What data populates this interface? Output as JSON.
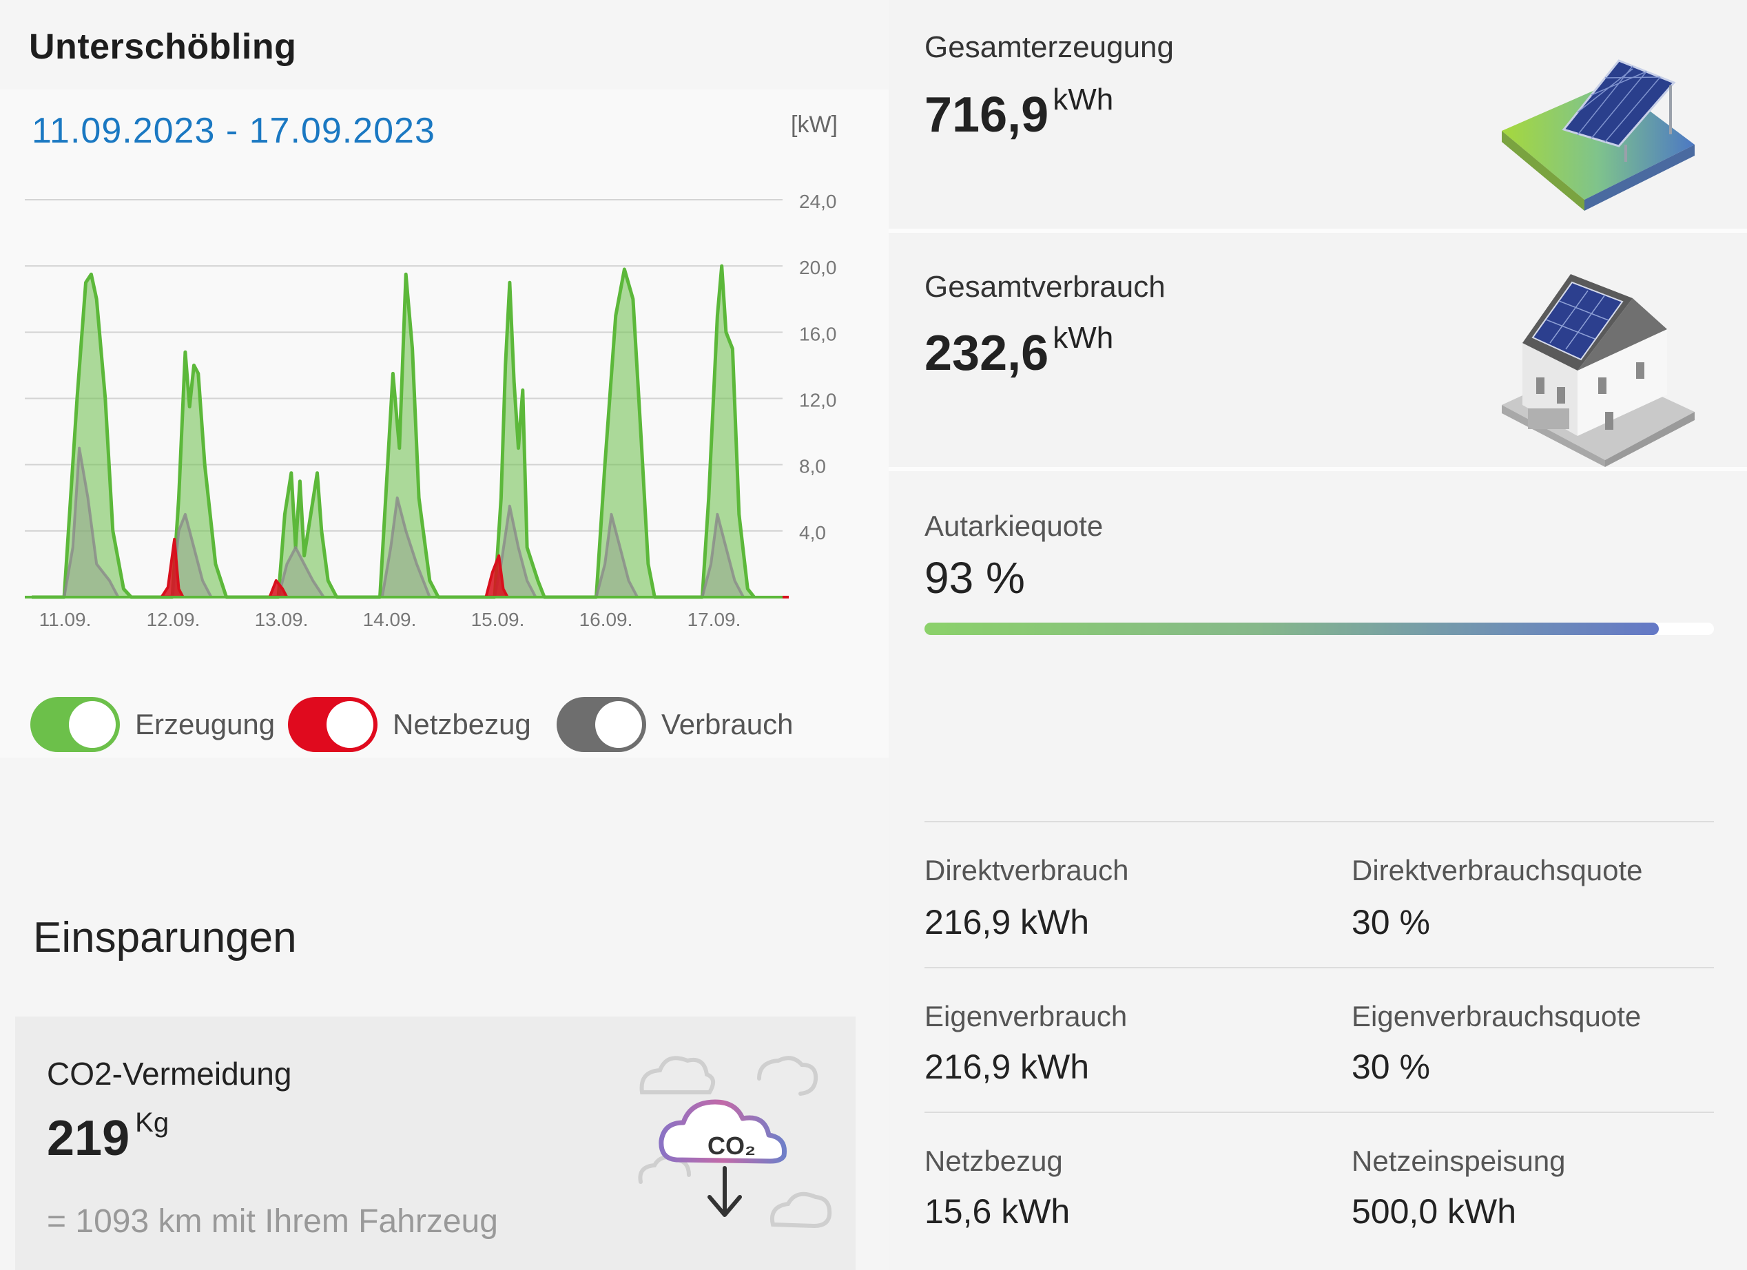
{
  "header": {
    "title": "Unterschöbling"
  },
  "chart": {
    "date_range": "11.09.2023 - 17.09.2023",
    "unit": "[kW]",
    "y_ticks": [
      "24,0",
      "20,0",
      "16,0",
      "12,0",
      "8,0",
      "4,0"
    ],
    "x_ticks": [
      "11.09.",
      "12.09.",
      "13.09.",
      "14.09.",
      "15.09.",
      "16.09.",
      "17.09."
    ]
  },
  "chart_data": {
    "type": "area",
    "x_unit": "day",
    "x_categories": [
      "11.09.",
      "12.09.",
      "13.09.",
      "14.09.",
      "15.09.",
      "16.09.",
      "17.09."
    ],
    "ylabel": "[kW]",
    "ylim": [
      0,
      24
    ],
    "y_ticks": [
      4,
      8,
      12,
      16,
      20,
      24
    ],
    "grid": true,
    "series": [
      {
        "name": "Erzeugung",
        "color": "#6cc04a",
        "points": [
          [
            0.0,
            0
          ],
          [
            0.3,
            0
          ],
          [
            0.42,
            12
          ],
          [
            0.5,
            19
          ],
          [
            0.55,
            19.5
          ],
          [
            0.6,
            18
          ],
          [
            0.68,
            12
          ],
          [
            0.75,
            4
          ],
          [
            0.85,
            0.5
          ],
          [
            0.92,
            0
          ],
          [
            1.0,
            0
          ],
          [
            1.3,
            0
          ],
          [
            1.36,
            6
          ],
          [
            1.42,
            14.8
          ],
          [
            1.46,
            11.5
          ],
          [
            1.5,
            14
          ],
          [
            1.54,
            13.5
          ],
          [
            1.6,
            8
          ],
          [
            1.7,
            2
          ],
          [
            1.8,
            0
          ],
          [
            2.0,
            0
          ],
          [
            2.28,
            0
          ],
          [
            2.34,
            5
          ],
          [
            2.4,
            7.5
          ],
          [
            2.44,
            3
          ],
          [
            2.48,
            7
          ],
          [
            2.52,
            2.5
          ],
          [
            2.58,
            5
          ],
          [
            2.64,
            7.5
          ],
          [
            2.68,
            4
          ],
          [
            2.74,
            1
          ],
          [
            2.82,
            0
          ],
          [
            3.0,
            0
          ],
          [
            3.22,
            0
          ],
          [
            3.3,
            9
          ],
          [
            3.34,
            13.5
          ],
          [
            3.4,
            9
          ],
          [
            3.46,
            19.5
          ],
          [
            3.52,
            15
          ],
          [
            3.58,
            6
          ],
          [
            3.68,
            1
          ],
          [
            3.76,
            0
          ],
          [
            4.0,
            0
          ],
          [
            4.28,
            0
          ],
          [
            4.34,
            6
          ],
          [
            4.38,
            14
          ],
          [
            4.42,
            19
          ],
          [
            4.46,
            13
          ],
          [
            4.5,
            9
          ],
          [
            4.54,
            12.5
          ],
          [
            4.58,
            3
          ],
          [
            4.68,
            1
          ],
          [
            4.74,
            0
          ],
          [
            5.0,
            0
          ],
          [
            5.22,
            0
          ],
          [
            5.3,
            8
          ],
          [
            5.4,
            17
          ],
          [
            5.48,
            19.8
          ],
          [
            5.56,
            18
          ],
          [
            5.64,
            9
          ],
          [
            5.7,
            2
          ],
          [
            5.76,
            0
          ],
          [
            6.0,
            0
          ],
          [
            6.2,
            0
          ],
          [
            6.26,
            6
          ],
          [
            6.34,
            17
          ],
          [
            6.38,
            20
          ],
          [
            6.42,
            16
          ],
          [
            6.48,
            15
          ],
          [
            6.54,
            5
          ],
          [
            6.62,
            0.5
          ],
          [
            6.68,
            0
          ]
        ]
      },
      {
        "name": "Verbrauch",
        "color": "#8a8a8a",
        "points": [
          [
            0.0,
            0
          ],
          [
            0.3,
            0
          ],
          [
            0.38,
            3
          ],
          [
            0.44,
            9
          ],
          [
            0.52,
            6
          ],
          [
            0.6,
            2
          ],
          [
            0.72,
            1
          ],
          [
            0.8,
            0
          ],
          [
            1.0,
            0
          ],
          [
            1.3,
            0
          ],
          [
            1.36,
            4
          ],
          [
            1.42,
            5
          ],
          [
            1.5,
            3
          ],
          [
            1.58,
            1
          ],
          [
            1.66,
            0
          ],
          [
            2.0,
            0
          ],
          [
            2.28,
            0
          ],
          [
            2.36,
            2
          ],
          [
            2.44,
            3
          ],
          [
            2.52,
            2
          ],
          [
            2.6,
            1
          ],
          [
            2.7,
            0
          ],
          [
            3.0,
            0
          ],
          [
            3.24,
            0
          ],
          [
            3.32,
            3
          ],
          [
            3.38,
            6
          ],
          [
            3.46,
            4
          ],
          [
            3.56,
            2
          ],
          [
            3.68,
            0
          ],
          [
            4.0,
            0
          ],
          [
            4.28,
            0
          ],
          [
            4.34,
            2
          ],
          [
            4.42,
            5.5
          ],
          [
            4.5,
            3
          ],
          [
            4.58,
            1
          ],
          [
            4.66,
            0
          ],
          [
            5.0,
            0
          ],
          [
            5.22,
            0
          ],
          [
            5.3,
            2
          ],
          [
            5.36,
            5
          ],
          [
            5.44,
            3
          ],
          [
            5.52,
            1
          ],
          [
            5.6,
            0
          ],
          [
            6.0,
            0
          ],
          [
            6.2,
            0
          ],
          [
            6.28,
            2
          ],
          [
            6.34,
            5
          ],
          [
            6.42,
            3
          ],
          [
            6.5,
            1
          ],
          [
            6.58,
            0
          ]
        ]
      },
      {
        "name": "Netzbezug",
        "color": "#d8101d",
        "points": [
          [
            0.0,
            0
          ],
          [
            1.2,
            0
          ],
          [
            1.26,
            0.6
          ],
          [
            1.32,
            3.5
          ],
          [
            1.36,
            0.5
          ],
          [
            1.4,
            0
          ],
          [
            2.2,
            0
          ],
          [
            2.26,
            1
          ],
          [
            2.32,
            0.5
          ],
          [
            2.36,
            0
          ],
          [
            4.2,
            0
          ],
          [
            4.26,
            1.5
          ],
          [
            4.32,
            2.5
          ],
          [
            4.36,
            0.5
          ],
          [
            4.4,
            0
          ],
          [
            6.7,
            0
          ],
          [
            7.0,
            0
          ]
        ]
      }
    ]
  },
  "legend": {
    "items": [
      {
        "label": "Erzeugung",
        "color": "#6cc04a",
        "enabled": true
      },
      {
        "label": "Netzbezug",
        "color": "#e00a1e",
        "enabled": true
      },
      {
        "label": "Verbrauch",
        "color": "#6e6e6e",
        "enabled": true
      }
    ]
  },
  "savings": {
    "title": "Einsparungen",
    "co2": {
      "title": "CO2-Vermeidung",
      "value": "219",
      "unit": "Kg",
      "equivalent": "= 1093 km mit Ihrem Fahrzeug",
      "icon": "co2-cloud-icon",
      "icon_text": "CO₂"
    }
  },
  "summary": {
    "generation": {
      "label": "Gesamterzeugung",
      "value": "716,9",
      "unit": "kWh",
      "icon": "solar-panel-icon"
    },
    "consumption": {
      "label": "Gesamtverbrauch",
      "value": "232,6",
      "unit": "kWh",
      "icon": "house-solar-icon"
    },
    "autarky": {
      "label": "Autarkiequote",
      "value": "93 %",
      "percent": 93
    }
  },
  "metrics": [
    {
      "label": "Direktverbrauch",
      "value": "216,9 kWh"
    },
    {
      "label": "Direktverbrauchsquote",
      "value": "30 %"
    },
    {
      "label": "Eigenverbrauch",
      "value": "216,9 kWh"
    },
    {
      "label": "Eigenverbrauchsquote",
      "value": "30 %"
    },
    {
      "label": "Netzbezug",
      "value": "15,6 kWh"
    },
    {
      "label": "Netzeinspeisung",
      "value": "500,0 kWh"
    }
  ]
}
